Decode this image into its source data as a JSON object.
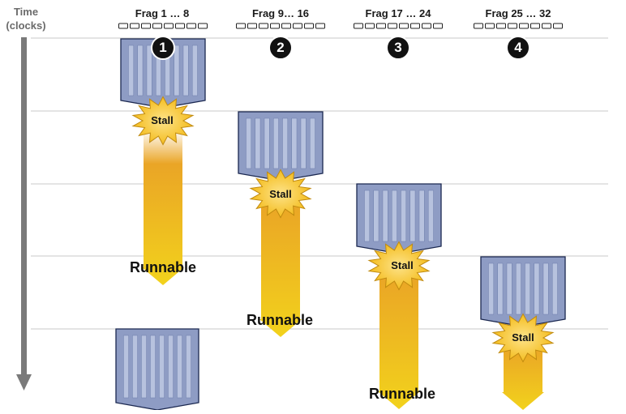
{
  "time_axis": {
    "line1": "Time",
    "line2": "(clocks)"
  },
  "groups": [
    {
      "label": "Frag 1 … 8",
      "badge": "1",
      "stall_label": "Stall",
      "runnable_label": "Runnable"
    },
    {
      "label": "Frag  9… 16",
      "badge": "2",
      "stall_label": "Stall",
      "runnable_label": "Runnable"
    },
    {
      "label": "Frag 17 … 24",
      "badge": "3",
      "stall_label": "Stall",
      "runnable_label": "Runnable"
    },
    {
      "label": "Frag 25 … 32",
      "badge": "4",
      "stall_label": "Stall"
    }
  ],
  "colors": {
    "block_fill": "#8e9cc4",
    "block_stripe": "#b7c2de",
    "block_border": "#1b2850",
    "arrow_gold": "#f0c420",
    "arrow_orange": "#eaa526",
    "stall_fill": "#f6c52b",
    "grid": "#c8c8c8",
    "axis": "#7a7a7a",
    "badge": "#111111"
  }
}
